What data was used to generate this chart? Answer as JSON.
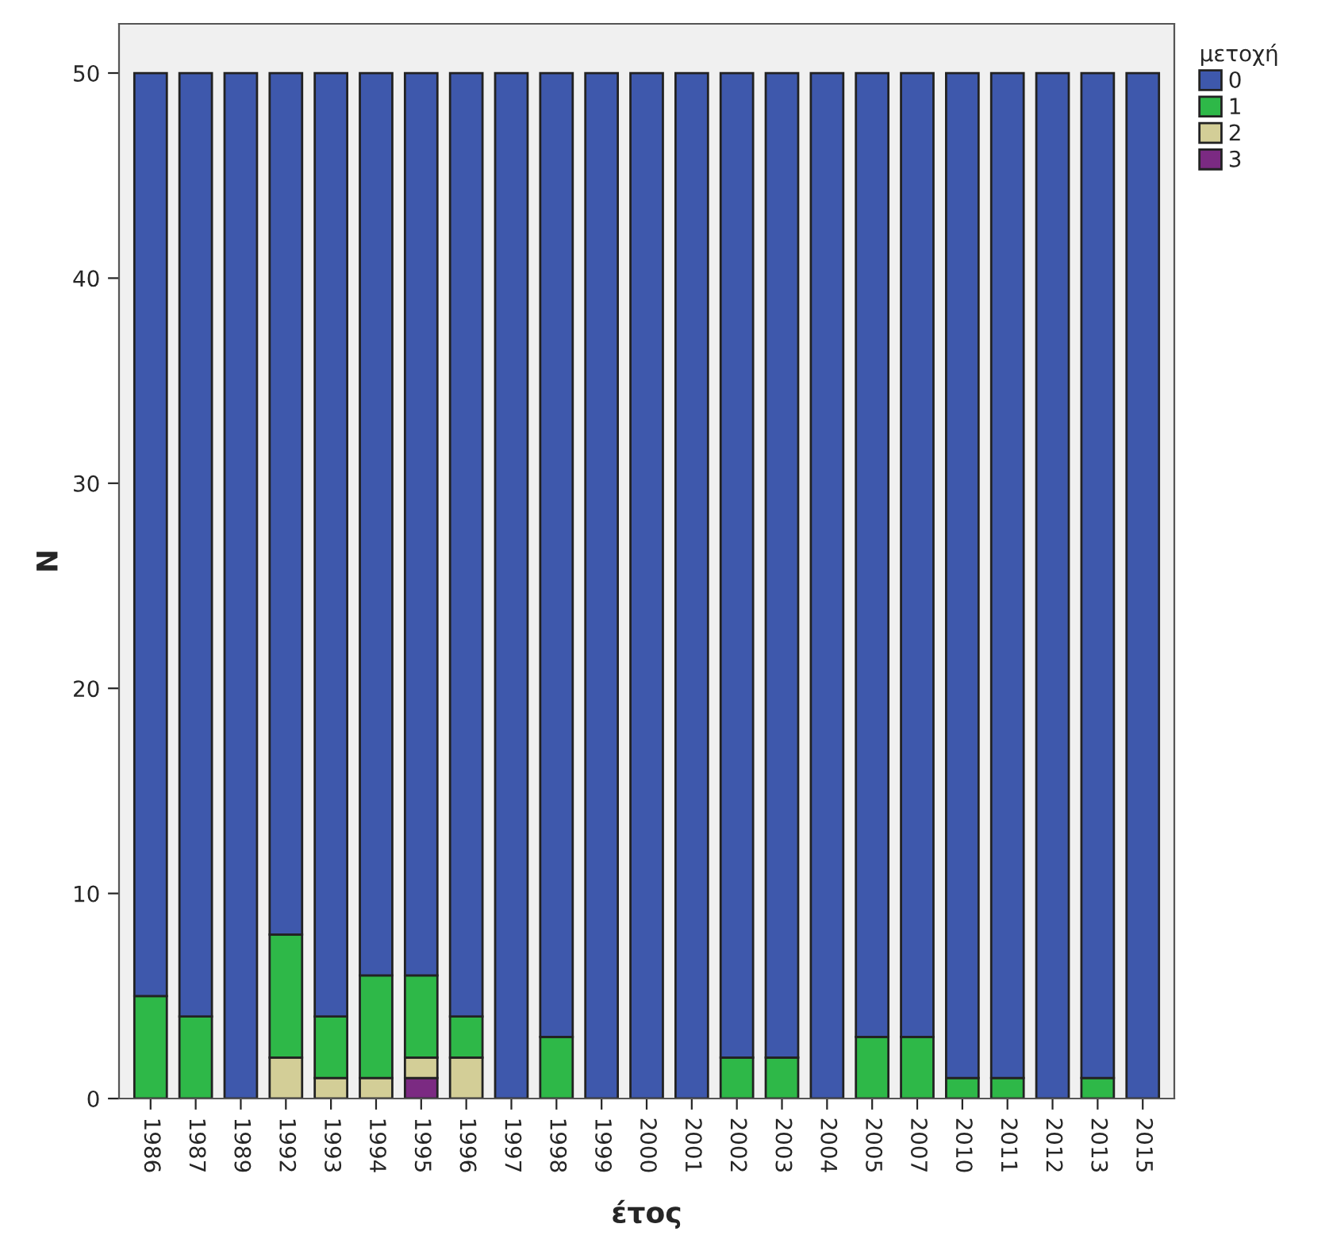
{
  "chart_data": {
    "type": "bar",
    "stacked": true,
    "xlabel": "έτος",
    "ylabel": "N",
    "legend_title": "μετοχή",
    "legend": "top right",
    "grid": false,
    "categories": [
      "1986",
      "1987",
      "1989",
      "1992",
      "1993",
      "1994",
      "1995",
      "1996",
      "1997",
      "1998",
      "1999",
      "2000",
      "2001",
      "2002",
      "2003",
      "2004",
      "2005",
      "2007",
      "2010",
      "2011",
      "2012",
      "2013",
      "2015"
    ],
    "ylim": [
      0,
      52.4
    ],
    "yticks": [
      0,
      10,
      20,
      30,
      40,
      50
    ],
    "series": [
      {
        "name": "3",
        "color": "#7b2a82",
        "values": [
          0,
          0,
          0,
          0,
          0,
          0,
          1,
          0,
          0,
          0,
          0,
          0,
          0,
          0,
          0,
          0,
          0,
          0,
          0,
          0,
          0,
          0,
          0
        ]
      },
      {
        "name": "2",
        "color": "#d3ce97",
        "values": [
          0,
          0,
          0,
          2,
          1,
          1,
          1,
          2,
          0,
          0,
          0,
          0,
          0,
          0,
          0,
          0,
          0,
          0,
          0,
          0,
          0,
          0,
          0
        ]
      },
      {
        "name": "1",
        "color": "#2eb848",
        "values": [
          5,
          4,
          0,
          6,
          3,
          5,
          4,
          2,
          0,
          3,
          0,
          0,
          0,
          2,
          2,
          0,
          3,
          3,
          1,
          1,
          0,
          1,
          0
        ]
      },
      {
        "name": "0",
        "color": "#3e58ac",
        "values": [
          45,
          46,
          50,
          42,
          46,
          44,
          44,
          46,
          50,
          47,
          50,
          50,
          50,
          48,
          48,
          50,
          47,
          47,
          49,
          49,
          50,
          49,
          50
        ]
      }
    ]
  }
}
